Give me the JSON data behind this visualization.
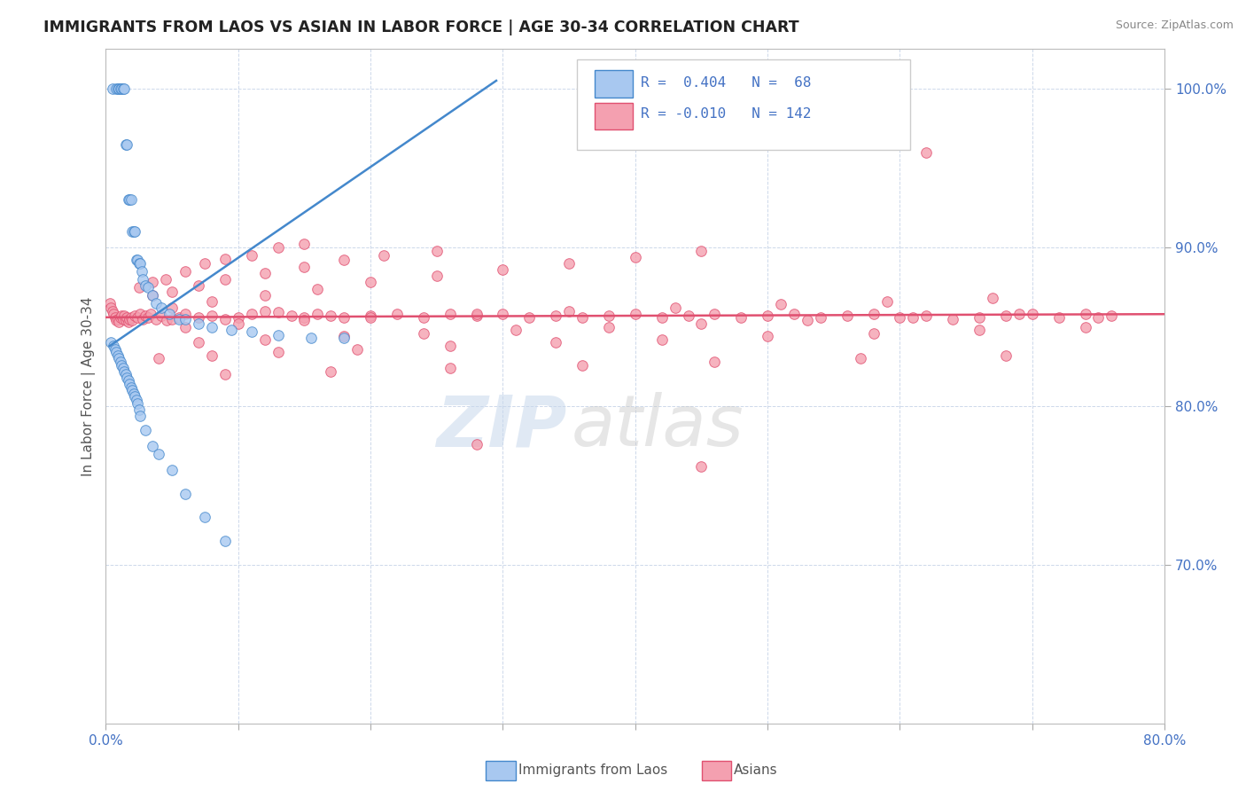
{
  "title": "IMMIGRANTS FROM LAOS VS ASIAN IN LABOR FORCE | AGE 30-34 CORRELATION CHART",
  "source": "Source: ZipAtlas.com",
  "ylabel": "In Labor Force | Age 30-34",
  "x_min": 0.0,
  "x_max": 0.8,
  "y_min": 0.6,
  "y_max": 1.025,
  "color_blue": "#a8c8f0",
  "color_pink": "#f4a0b0",
  "line_blue": "#4488cc",
  "line_pink": "#e05070",
  "blue_trend_x": [
    0.003,
    0.295
  ],
  "blue_trend_y": [
    0.838,
    1.005
  ],
  "pink_trend_x": [
    0.0,
    0.8
  ],
  "pink_trend_y": [
    0.856,
    0.858
  ],
  "blue_scatter_x": [
    0.005,
    0.008,
    0.009,
    0.01,
    0.011,
    0.012,
    0.013,
    0.014,
    0.015,
    0.016,
    0.017,
    0.018,
    0.019,
    0.02,
    0.021,
    0.022,
    0.023,
    0.024,
    0.025,
    0.026,
    0.027,
    0.028,
    0.03,
    0.032,
    0.035,
    0.038,
    0.042,
    0.048,
    0.055,
    0.06,
    0.07,
    0.08,
    0.095,
    0.11,
    0.13,
    0.155,
    0.18,
    0.004,
    0.006,
    0.007,
    0.008,
    0.009,
    0.01,
    0.011,
    0.012,
    0.013,
    0.014,
    0.015,
    0.016,
    0.017,
    0.018,
    0.019,
    0.02,
    0.021,
    0.022,
    0.023,
    0.024,
    0.025,
    0.026,
    0.03,
    0.035,
    0.04,
    0.05,
    0.06,
    0.075,
    0.09
  ],
  "blue_scatter_y": [
    1.0,
    1.0,
    1.0,
    1.0,
    1.0,
    1.0,
    1.0,
    1.0,
    0.965,
    0.965,
    0.93,
    0.93,
    0.93,
    0.91,
    0.91,
    0.91,
    0.892,
    0.892,
    0.89,
    0.89,
    0.885,
    0.88,
    0.876,
    0.875,
    0.87,
    0.865,
    0.862,
    0.858,
    0.855,
    0.855,
    0.852,
    0.85,
    0.848,
    0.847,
    0.845,
    0.843,
    0.843,
    0.84,
    0.838,
    0.836,
    0.834,
    0.832,
    0.83,
    0.828,
    0.826,
    0.824,
    0.822,
    0.82,
    0.818,
    0.816,
    0.814,
    0.812,
    0.81,
    0.808,
    0.806,
    0.804,
    0.802,
    0.798,
    0.794,
    0.785,
    0.775,
    0.77,
    0.76,
    0.745,
    0.73,
    0.715
  ],
  "pink_scatter_x": [
    0.003,
    0.004,
    0.005,
    0.006,
    0.007,
    0.008,
    0.009,
    0.01,
    0.011,
    0.012,
    0.013,
    0.014,
    0.015,
    0.016,
    0.017,
    0.018,
    0.019,
    0.02,
    0.022,
    0.024,
    0.026,
    0.028,
    0.03,
    0.032,
    0.034,
    0.038,
    0.042,
    0.046,
    0.05,
    0.055,
    0.06,
    0.07,
    0.08,
    0.09,
    0.1,
    0.11,
    0.12,
    0.13,
    0.14,
    0.15,
    0.16,
    0.17,
    0.18,
    0.2,
    0.22,
    0.24,
    0.26,
    0.28,
    0.3,
    0.32,
    0.34,
    0.36,
    0.38,
    0.4,
    0.42,
    0.44,
    0.46,
    0.48,
    0.5,
    0.52,
    0.54,
    0.56,
    0.58,
    0.6,
    0.62,
    0.64,
    0.66,
    0.68,
    0.7,
    0.72,
    0.74,
    0.76,
    0.025,
    0.035,
    0.045,
    0.06,
    0.075,
    0.09,
    0.11,
    0.13,
    0.15,
    0.035,
    0.05,
    0.07,
    0.09,
    0.12,
    0.15,
    0.18,
    0.21,
    0.25,
    0.05,
    0.08,
    0.12,
    0.16,
    0.2,
    0.25,
    0.3,
    0.35,
    0.4,
    0.45,
    0.06,
    0.1,
    0.15,
    0.2,
    0.28,
    0.35,
    0.43,
    0.51,
    0.59,
    0.67,
    0.07,
    0.12,
    0.18,
    0.24,
    0.31,
    0.38,
    0.45,
    0.53,
    0.61,
    0.69,
    0.04,
    0.08,
    0.13,
    0.19,
    0.26,
    0.34,
    0.42,
    0.5,
    0.58,
    0.66,
    0.74,
    0.09,
    0.17,
    0.26,
    0.36,
    0.46,
    0.57,
    0.68,
    0.45,
    0.28,
    0.62,
    0.75
  ],
  "pink_scatter_y": [
    0.865,
    0.862,
    0.86,
    0.858,
    0.856,
    0.854,
    0.855,
    0.853,
    0.856,
    0.857,
    0.855,
    0.857,
    0.854,
    0.856,
    0.853,
    0.855,
    0.856,
    0.854,
    0.857,
    0.856,
    0.858,
    0.855,
    0.857,
    0.856,
    0.858,
    0.855,
    0.857,
    0.854,
    0.855,
    0.856,
    0.858,
    0.856,
    0.857,
    0.855,
    0.856,
    0.858,
    0.86,
    0.859,
    0.857,
    0.856,
    0.858,
    0.857,
    0.856,
    0.857,
    0.858,
    0.856,
    0.858,
    0.857,
    0.858,
    0.856,
    0.857,
    0.856,
    0.857,
    0.858,
    0.856,
    0.857,
    0.858,
    0.856,
    0.857,
    0.858,
    0.856,
    0.857,
    0.858,
    0.856,
    0.857,
    0.855,
    0.856,
    0.857,
    0.858,
    0.856,
    0.858,
    0.857,
    0.875,
    0.878,
    0.88,
    0.885,
    0.89,
    0.893,
    0.895,
    0.9,
    0.902,
    0.87,
    0.872,
    0.876,
    0.88,
    0.884,
    0.888,
    0.892,
    0.895,
    0.898,
    0.862,
    0.866,
    0.87,
    0.874,
    0.878,
    0.882,
    0.886,
    0.89,
    0.894,
    0.898,
    0.85,
    0.852,
    0.854,
    0.856,
    0.858,
    0.86,
    0.862,
    0.864,
    0.866,
    0.868,
    0.84,
    0.842,
    0.844,
    0.846,
    0.848,
    0.85,
    0.852,
    0.854,
    0.856,
    0.858,
    0.83,
    0.832,
    0.834,
    0.836,
    0.838,
    0.84,
    0.842,
    0.844,
    0.846,
    0.848,
    0.85,
    0.82,
    0.822,
    0.824,
    0.826,
    0.828,
    0.83,
    0.832,
    0.762,
    0.776,
    0.96,
    0.856
  ]
}
